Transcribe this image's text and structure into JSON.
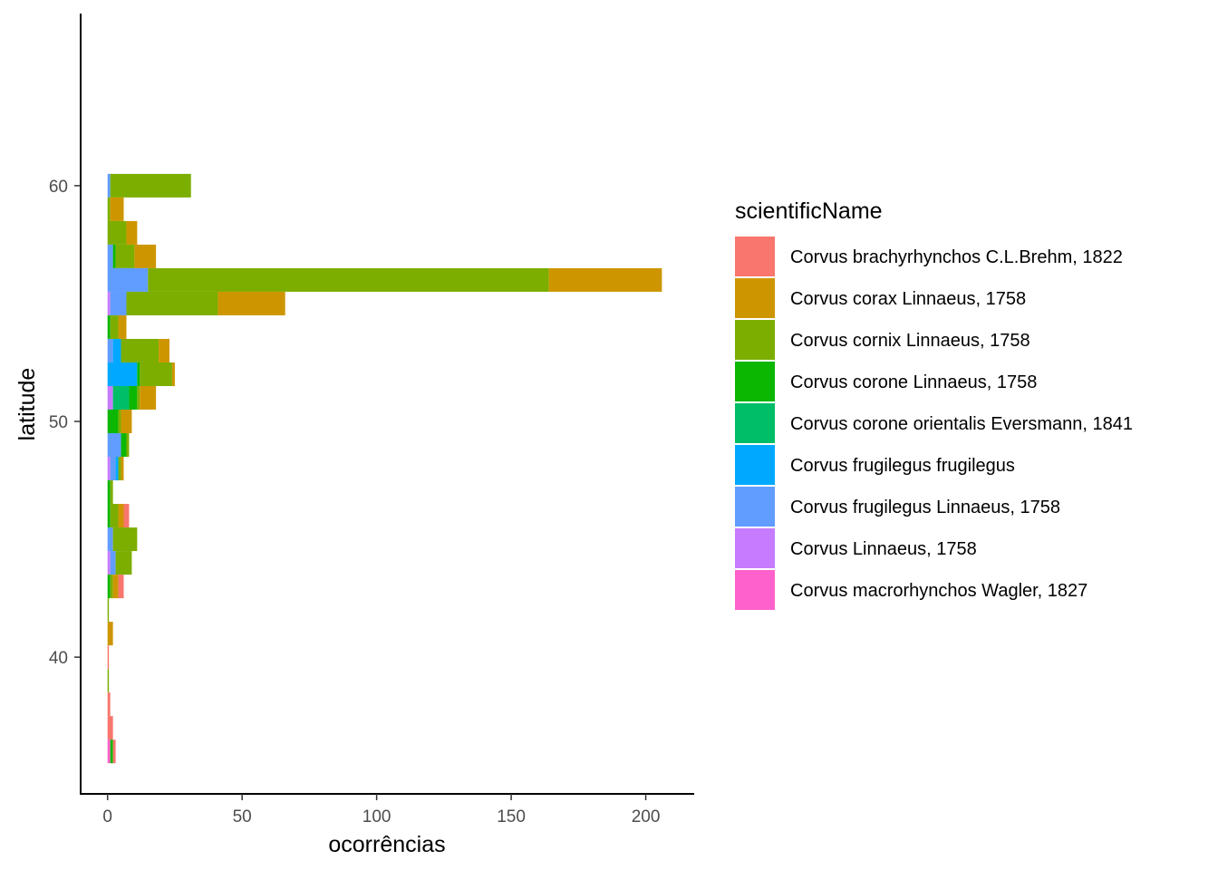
{
  "chart_data": {
    "type": "bar",
    "orientation": "horizontal",
    "stacked": true,
    "xlabel": "ocorrências",
    "ylabel": "latitude",
    "xlim": [
      -10,
      218
    ],
    "ylim": [
      34.2,
      67.3
    ],
    "xticks": [
      0,
      50,
      100,
      150,
      200
    ],
    "yticks": [
      40,
      50,
      60
    ],
    "bin_width": 1,
    "grid": false,
    "legend_title": "scientificName",
    "legend_position": "right",
    "series": [
      {
        "name": "Corvus brachyrhynchos C.L.Brehm, 1822",
        "color": "#F8766D"
      },
      {
        "name": "Corvus corax Linnaeus, 1758",
        "color": "#CD9600"
      },
      {
        "name": "Corvus cornix Linnaeus, 1758",
        "color": "#7CAE00"
      },
      {
        "name": "Corvus corone Linnaeus, 1758",
        "color": "#0CB702"
      },
      {
        "name": "Corvus corone orientalis Eversmann, 1841",
        "color": "#00BE67"
      },
      {
        "name": "Corvus frugilegus frugilegus",
        "color": "#00A9FF"
      },
      {
        "name": "Corvus frugilegus Linnaeus, 1758",
        "color": "#619CFF"
      },
      {
        "name": "Corvus Linnaeus, 1758",
        "color": "#C77CFF"
      },
      {
        "name": "Corvus macrorhynchos Wagler, 1827",
        "color": "#FF61CC"
      }
    ],
    "bins": [
      {
        "lat": 60,
        "segments": [
          {
            "s": 6,
            "v": 1
          },
          {
            "s": 2,
            "v": 30
          }
        ]
      },
      {
        "lat": 59,
        "segments": [
          {
            "s": 2,
            "v": 1
          },
          {
            "s": 1,
            "v": 5
          }
        ]
      },
      {
        "lat": 58,
        "segments": [
          {
            "s": 2,
            "v": 7
          },
          {
            "s": 1,
            "v": 4
          }
        ]
      },
      {
        "lat": 57,
        "segments": [
          {
            "s": 6,
            "v": 2
          },
          {
            "s": 3,
            "v": 1
          },
          {
            "s": 2,
            "v": 7
          },
          {
            "s": 1,
            "v": 8
          }
        ]
      },
      {
        "lat": 56,
        "segments": [
          {
            "s": 6,
            "v": 15
          },
          {
            "s": 2,
            "v": 149
          },
          {
            "s": 1,
            "v": 42
          }
        ]
      },
      {
        "lat": 55,
        "segments": [
          {
            "s": 7,
            "v": 1
          },
          {
            "s": 6,
            "v": 6
          },
          {
            "s": 2,
            "v": 34
          },
          {
            "s": 1,
            "v": 25
          }
        ]
      },
      {
        "lat": 54,
        "segments": [
          {
            "s": 3,
            "v": 1
          },
          {
            "s": 2,
            "v": 3
          },
          {
            "s": 1,
            "v": 3
          }
        ]
      },
      {
        "lat": 53,
        "segments": [
          {
            "s": 6,
            "v": 2
          },
          {
            "s": 5,
            "v": 3
          },
          {
            "s": 2,
            "v": 14
          },
          {
            "s": 1,
            "v": 4
          }
        ]
      },
      {
        "lat": 52,
        "segments": [
          {
            "s": 5,
            "v": 11
          },
          {
            "s": 3,
            "v": 1
          },
          {
            "s": 2,
            "v": 12
          },
          {
            "s": 1,
            "v": 1
          }
        ]
      },
      {
        "lat": 51,
        "segments": [
          {
            "s": 7,
            "v": 2
          },
          {
            "s": 4,
            "v": 6
          },
          {
            "s": 3,
            "v": 3
          },
          {
            "s": 2,
            "v": 1
          },
          {
            "s": 1,
            "v": 6
          }
        ]
      },
      {
        "lat": 50,
        "segments": [
          {
            "s": 3,
            "v": 4
          },
          {
            "s": 2,
            "v": 1
          },
          {
            "s": 1,
            "v": 4
          }
        ]
      },
      {
        "lat": 49,
        "segments": [
          {
            "s": 6,
            "v": 5
          },
          {
            "s": 3,
            "v": 2
          },
          {
            "s": 2,
            "v": 1
          }
        ]
      },
      {
        "lat": 48,
        "segments": [
          {
            "s": 7,
            "v": 1
          },
          {
            "s": 6,
            "v": 2
          },
          {
            "s": 5,
            "v": 1
          },
          {
            "s": 2,
            "v": 1
          },
          {
            "s": 1,
            "v": 1
          }
        ]
      },
      {
        "lat": 47,
        "segments": [
          {
            "s": 3,
            "v": 1
          },
          {
            "s": 2,
            "v": 1
          }
        ]
      },
      {
        "lat": 46,
        "segments": [
          {
            "s": 3,
            "v": 1
          },
          {
            "s": 2,
            "v": 3
          },
          {
            "s": 1,
            "v": 2
          },
          {
            "s": 0,
            "v": 2
          }
        ]
      },
      {
        "lat": 45,
        "segments": [
          {
            "s": 6,
            "v": 2
          },
          {
            "s": 2,
            "v": 9
          }
        ]
      },
      {
        "lat": 44,
        "segments": [
          {
            "s": 7,
            "v": 1
          },
          {
            "s": 6,
            "v": 2
          },
          {
            "s": 2,
            "v": 6
          }
        ]
      },
      {
        "lat": 43,
        "segments": [
          {
            "s": 3,
            "v": 1
          },
          {
            "s": 2,
            "v": 1
          },
          {
            "s": 1,
            "v": 2
          },
          {
            "s": 0,
            "v": 2
          }
        ]
      },
      {
        "lat": 42,
        "segments": [
          {
            "s": 2,
            "v": 0.5
          }
        ]
      },
      {
        "lat": 41,
        "segments": [
          {
            "s": 1,
            "v": 2
          }
        ]
      },
      {
        "lat": 40,
        "segments": [
          {
            "s": 0,
            "v": 0.5
          }
        ]
      },
      {
        "lat": 39,
        "segments": [
          {
            "s": 2,
            "v": 0.5
          }
        ]
      },
      {
        "lat": 38,
        "segments": [
          {
            "s": 0,
            "v": 1
          }
        ]
      },
      {
        "lat": 37,
        "segments": [
          {
            "s": 0,
            "v": 2
          }
        ]
      },
      {
        "lat": 36,
        "segments": [
          {
            "s": 8,
            "v": 1
          },
          {
            "s": 3,
            "v": 1
          },
          {
            "s": 0,
            "v": 1
          }
        ]
      }
    ]
  }
}
